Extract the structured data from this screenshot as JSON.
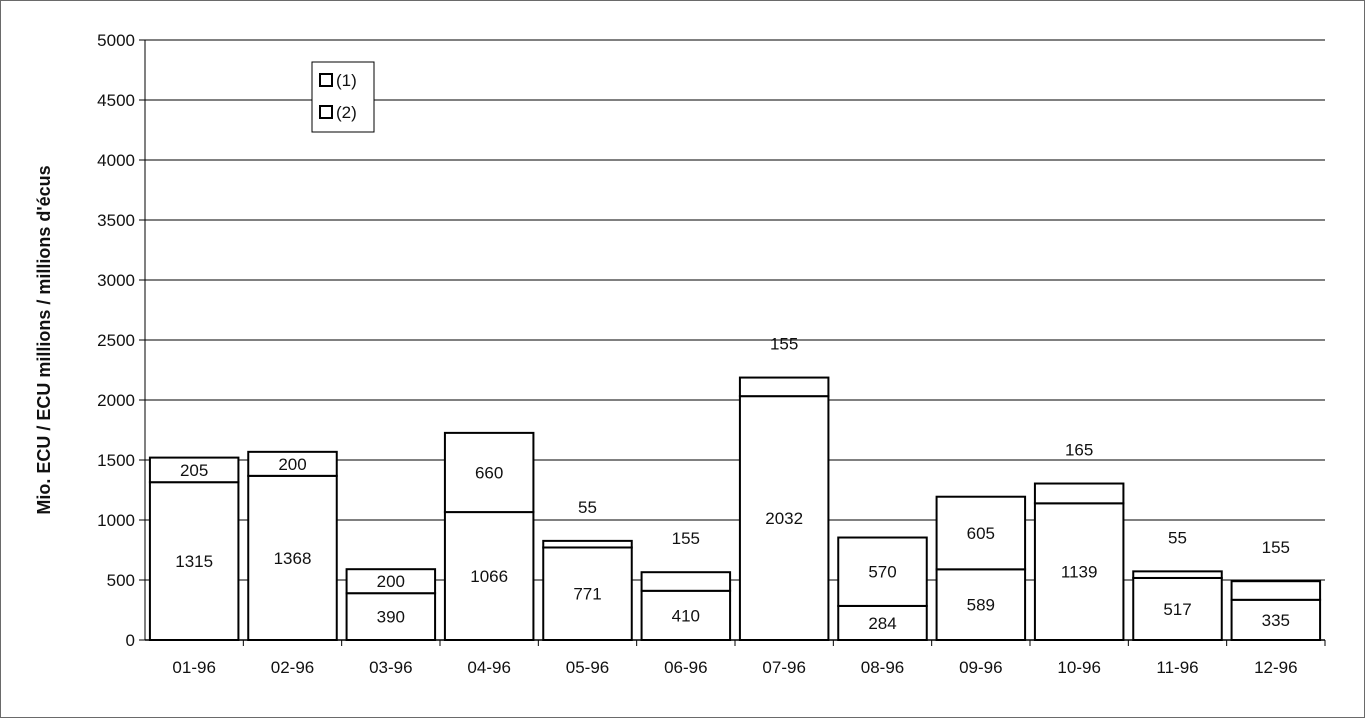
{
  "chart_data": {
    "type": "bar",
    "stacked": true,
    "categories": [
      "01-96",
      "02-96",
      "03-96",
      "04-96",
      "05-96",
      "06-96",
      "07-96",
      "08-96",
      "09-96",
      "10-96",
      "11-96",
      "12-96"
    ],
    "series": [
      {
        "name": "(1)",
        "values": [
          1315,
          1368,
          390,
          1066,
          771,
          410,
          2032,
          284,
          589,
          1139,
          517,
          335
        ]
      },
      {
        "name": "(2)",
        "values": [
          205,
          200,
          200,
          660,
          55,
          155,
          155,
          570,
          605,
          165,
          55,
          155
        ]
      }
    ],
    "ylabel": "Mio. ECU / ECU millions / millions d'écus",
    "ylim": [
      0,
      5000
    ],
    "yticks": [
      "0",
      "500",
      "1000",
      "1500",
      "2000",
      "2500",
      "3000",
      "3500",
      "4000",
      "4500",
      "5000"
    ],
    "grid": true,
    "legend": "top-left",
    "colors": {
      "bar_fill": "#ffffff",
      "bar_stroke": "#000000",
      "grid": "#000000"
    }
  }
}
